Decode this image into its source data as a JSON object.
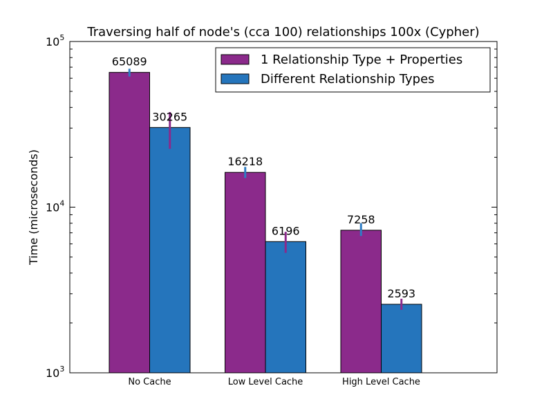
{
  "chart_data": {
    "type": "bar",
    "title": "Traversing half of node's (cca 100) relationships 100x (Cypher)",
    "xlabel": "",
    "ylabel": "Time (microseconds)",
    "yscale": "log",
    "ylim": [
      1000,
      100000
    ],
    "yticks": [
      {
        "value": 1000,
        "base": "10",
        "exp": "3"
      },
      {
        "value": 10000,
        "base": "10",
        "exp": "4"
      },
      {
        "value": 100000,
        "base": "10",
        "exp": "5"
      }
    ],
    "categories": [
      "No Cache",
      "Low Level Cache",
      "High Level Cache"
    ],
    "series": [
      {
        "name": "1 Relationship Type + Properties",
        "color": "#8b2a8b",
        "error_color": "#2e7dc4",
        "values": [
          65089,
          16218,
          7258
        ],
        "error_low": [
          61500,
          15000,
          6700
        ],
        "error_high": [
          68500,
          17500,
          8000
        ]
      },
      {
        "name": "Different Relationship Types",
        "color": "#2575bc",
        "error_color": "#8b2a8b",
        "values": [
          30265,
          6196,
          2593
        ],
        "error_low": [
          22500,
          5300,
          2400
        ],
        "error_high": [
          37500,
          7100,
          2800
        ]
      }
    ],
    "data_labels": [
      [
        "65089",
        "16218",
        "7258"
      ],
      [
        "30265",
        "6196",
        "2593"
      ]
    ],
    "legend_position": "top-right",
    "grid": false
  }
}
